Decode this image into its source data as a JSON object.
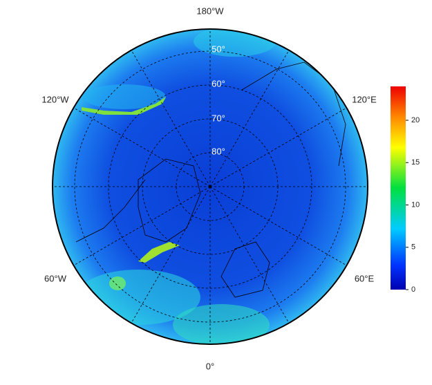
{
  "map": {
    "longitude_labels": [
      "180°W",
      "120°E",
      "60°E",
      "0°",
      "60°W",
      "120°W"
    ],
    "latitude_labels": [
      "50°",
      "60°",
      "70°",
      "80°"
    ],
    "colorbar": {
      "lim": [
        0,
        24
      ],
      "ticks": [
        0,
        5,
        10,
        15,
        20
      ]
    }
  }
}
